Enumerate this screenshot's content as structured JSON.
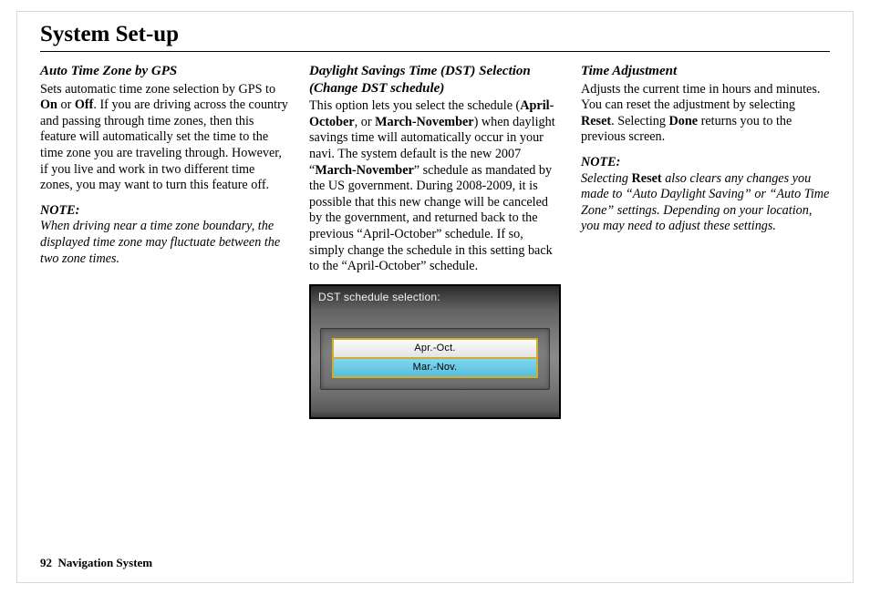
{
  "page": {
    "title": "System Set-up",
    "footer_page": "92",
    "footer_label": "Navigation System"
  },
  "col1": {
    "heading": "Auto Time Zone by GPS",
    "p1_a": "Sets automatic time zone selection by GPS to ",
    "p1_b_on": "On",
    "p1_c": " or ",
    "p1_b_off": "Off",
    "p1_d": ". If you are driving across the country and passing through time zones, then this feature will automatically set the time to the time zone you are traveling through. However, if you live and work in two different time zones, you may want to turn this feature off.",
    "note_label": "NOTE:",
    "note_body": "When driving near a time zone boundary, the displayed time zone may fluctuate between the two zone times."
  },
  "col2": {
    "heading": "Daylight Savings Time (DST) Selection (Change DST schedule)",
    "p1_a": "This option lets you select the schedule (",
    "p1_b1": "April-October",
    "p1_c": ", or ",
    "p1_b2": "March-November",
    "p1_d": ") when daylight savings time will automatically occur in your navi. The system default is the new 2007 “",
    "p1_b3": "March-November",
    "p1_e": "” schedule as mandated by the US government. During 2008-2009, it is possible that this new change will be canceled by the government, and returned back to the previous “April-October” schedule. If so, simply change the schedule in this setting back to the “April-October” schedule.",
    "screenshot": {
      "header": "DST schedule selection:",
      "option1": "Apr.-Oct.",
      "option2": "Mar.-Nov.",
      "colors": {
        "border_outer": "#000000",
        "button_border": "#cdae2e",
        "selected_bg_top": "#7fd7ee",
        "selected_bg_bottom": "#56bedd",
        "unselected_bg_top": "#fbfbfb",
        "unselected_bg_bottom": "#e4e4e4",
        "panel_grad": [
          "#2a2a2a",
          "#636363",
          "#8a8a8a",
          "#3b3b3b"
        ],
        "header_text": "#f2f2f2"
      }
    }
  },
  "col3": {
    "heading": "Time Adjustment",
    "p1_a": "Adjusts the current time in hours and minutes. You can reset the adjustment by selecting ",
    "p1_b_reset": "Reset",
    "p1_c": ". Selecting ",
    "p1_b_done": "Done",
    "p1_d": " returns you to the previous screen.",
    "note_label": "NOTE:",
    "note_a": "Selecting ",
    "note_b_reset": "Reset",
    "note_c": " also clears any changes you made to “Auto Daylight Saving” or “Auto Time Zone” settings. Depending on your location, you may need to adjust these settings."
  }
}
